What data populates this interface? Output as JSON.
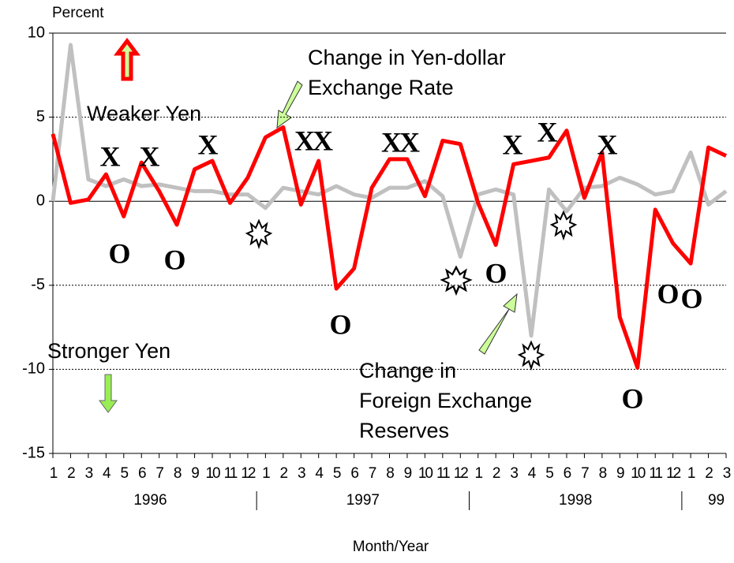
{
  "chart_data": {
    "type": "line",
    "y_label": "Percent",
    "x_label": "Month/Year",
    "categories": [
      "1",
      "2",
      "3",
      "4",
      "5",
      "6",
      "7",
      "8",
      "9",
      "10",
      "11",
      "12",
      "1",
      "2",
      "3",
      "4",
      "5",
      "6",
      "7",
      "8",
      "9",
      "10",
      "11",
      "12",
      "1",
      "2",
      "3",
      "4",
      "5",
      "6",
      "7",
      "8",
      "9",
      "10",
      "11",
      "12",
      "1",
      "2",
      "3"
    ],
    "year_labels": [
      "1996",
      "1997",
      "1998",
      "99"
    ],
    "series": [
      {
        "name": "Change in Yen-dollar Exchange Rate",
        "color": "#ff0000",
        "values": [
          4.0,
          -0.1,
          0.1,
          1.6,
          -0.9,
          2.3,
          0.6,
          -1.4,
          1.9,
          2.4,
          -0.1,
          1.4,
          3.8,
          4.4,
          -0.2,
          2.4,
          -5.2,
          -4.0,
          0.8,
          2.5,
          2.5,
          0.3,
          3.6,
          3.4,
          -0.1,
          -2.6,
          2.2,
          2.4,
          2.6,
          4.2,
          0.2,
          2.9,
          -6.9,
          -9.9,
          -0.5,
          -2.5,
          -3.7,
          3.2,
          2.7
        ]
      },
      {
        "name": "Change in Foreign Exchange Reserves",
        "color": "#c0c0c0",
        "values": [
          0.0,
          9.3,
          1.3,
          0.9,
          1.3,
          0.9,
          1.0,
          0.8,
          0.6,
          0.6,
          0.4,
          0.4,
          -0.4,
          0.8,
          0.6,
          0.4,
          0.9,
          0.4,
          0.2,
          0.8,
          0.8,
          1.2,
          0.3,
          -3.3,
          0.4,
          0.7,
          0.4,
          -8.0,
          0.7,
          -0.6,
          0.8,
          0.9,
          1.4,
          1.0,
          0.4,
          0.6,
          2.9,
          -0.2,
          0.6
        ]
      }
    ],
    "ylim": [
      -15,
      10
    ],
    "yticks": [
      10,
      5,
      0,
      -5,
      -10,
      -15
    ],
    "grid": true,
    "annotations": [
      {
        "lines": [
          "Weaker Yen"
        ]
      },
      {
        "lines": [
          "Stronger Yen"
        ]
      },
      {
        "lines": [
          "Change in Yen-dollar",
          "Exchange Rate"
        ]
      },
      {
        "lines": [
          "Change in",
          "Foreign Exchange",
          "Reserves"
        ]
      }
    ],
    "markers": [
      "X",
      "X",
      "X",
      "XX",
      "XX",
      "X",
      "X",
      "X",
      "O",
      "O",
      "O",
      "O",
      "O",
      "O",
      "O"
    ]
  }
}
